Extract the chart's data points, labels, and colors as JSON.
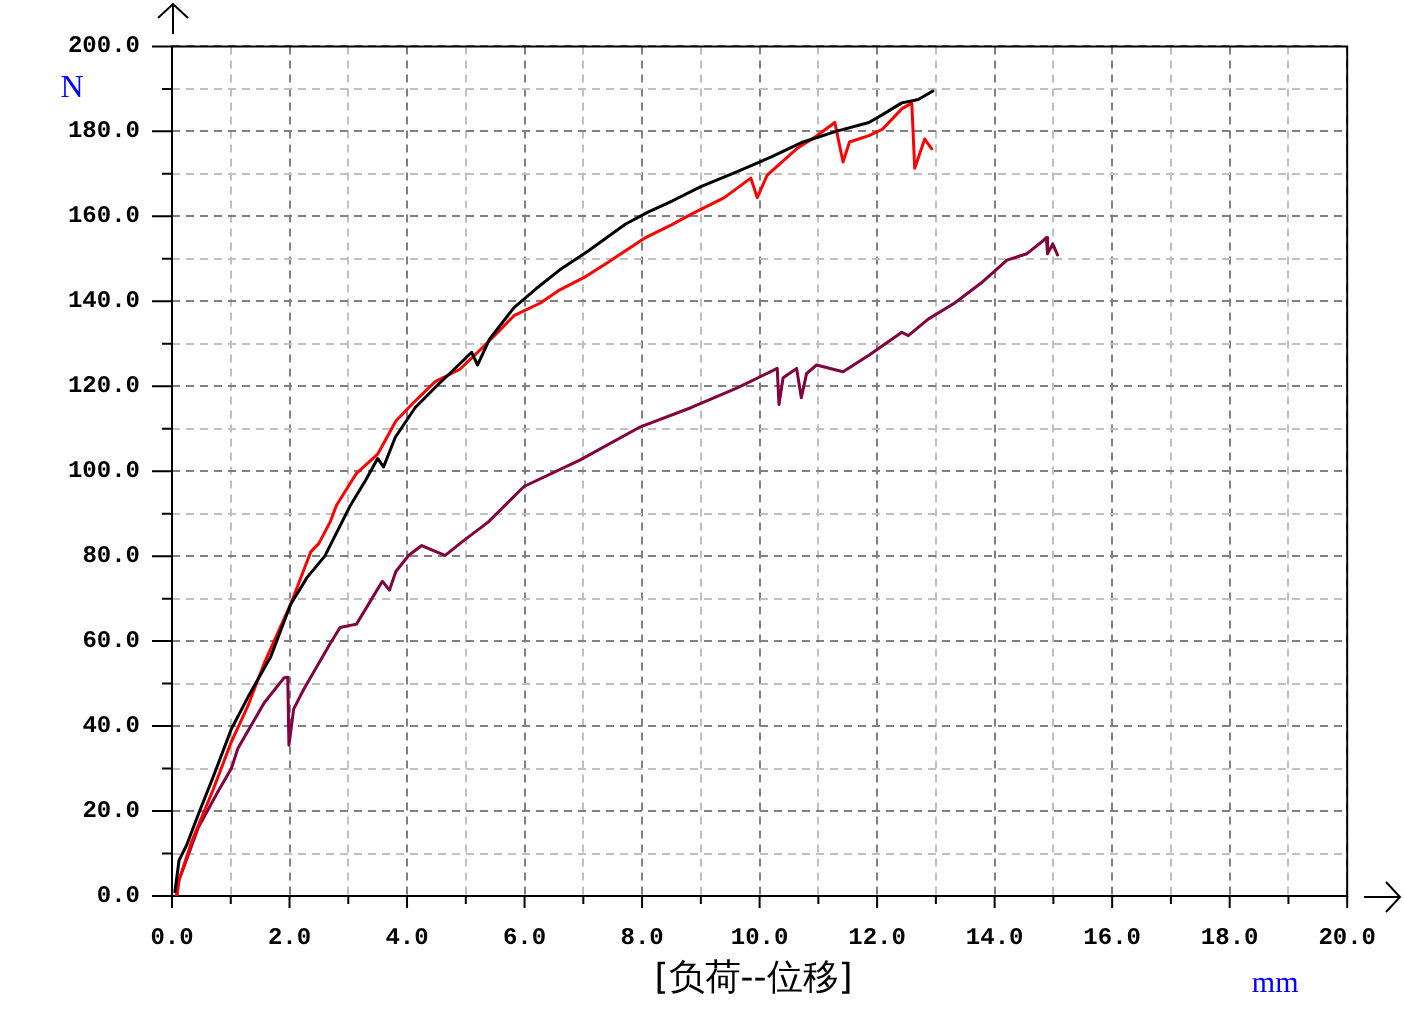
{
  "chart_data": {
    "type": "line",
    "title": "[负荷--位移]",
    "xlabel": "mm",
    "ylabel": "N",
    "xlim": [
      0,
      20
    ],
    "ylim": [
      0,
      200
    ],
    "xticks": [
      {
        "value": 0,
        "label": "0.0"
      },
      {
        "value": 1,
        "label": null
      },
      {
        "value": 2,
        "label": "2.0"
      },
      {
        "value": 3,
        "label": null
      },
      {
        "value": 4,
        "label": "4.0"
      },
      {
        "value": 5,
        "label": null
      },
      {
        "value": 6,
        "label": "6.0"
      },
      {
        "value": 7,
        "label": null
      },
      {
        "value": 8,
        "label": "8.0"
      },
      {
        "value": 9,
        "label": null
      },
      {
        "value": 10,
        "label": "10.0"
      },
      {
        "value": 11,
        "label": null
      },
      {
        "value": 12,
        "label": "12.0"
      },
      {
        "value": 13,
        "label": null
      },
      {
        "value": 14,
        "label": "14.0"
      },
      {
        "value": 15,
        "label": null
      },
      {
        "value": 16,
        "label": "16.0"
      },
      {
        "value": 17,
        "label": null
      },
      {
        "value": 18,
        "label": "18.0"
      },
      {
        "value": 19,
        "label": null
      },
      {
        "value": 20,
        "label": "20.0"
      }
    ],
    "yticks": [
      {
        "value": 0,
        "label": "0.0"
      },
      {
        "value": 10,
        "label": null
      },
      {
        "value": 20,
        "label": "20.0"
      },
      {
        "value": 30,
        "label": null
      },
      {
        "value": 40,
        "label": "40.0"
      },
      {
        "value": 50,
        "label": null
      },
      {
        "value": 60,
        "label": "60.0"
      },
      {
        "value": 70,
        "label": null
      },
      {
        "value": 80,
        "label": "80.0"
      },
      {
        "value": 90,
        "label": null
      },
      {
        "value": 100,
        "label": "100.0"
      },
      {
        "value": 110,
        "label": null
      },
      {
        "value": 120,
        "label": "120.0"
      },
      {
        "value": 130,
        "label": null
      },
      {
        "value": 140,
        "label": "140.0"
      },
      {
        "value": 150,
        "label": null
      },
      {
        "value": 160,
        "label": "160.0"
      },
      {
        "value": 170,
        "label": null
      },
      {
        "value": 180,
        "label": "180.0"
      },
      {
        "value": 190,
        "label": null
      },
      {
        "value": 200,
        "label": "200.0"
      }
    ],
    "grid": true,
    "legend": false,
    "marker": "none",
    "line_style": "solid",
    "series": [
      {
        "color": "#000000",
        "x": [
          0.05,
          0.12,
          0.25,
          0.45,
          0.7,
          1.01,
          1.3,
          1.68,
          2.02,
          2.3,
          2.6,
          3.03,
          3.3,
          3.5,
          3.6,
          3.8,
          4.14,
          4.5,
          4.93,
          5.1,
          5.2,
          5.4,
          5.82,
          6.2,
          6.6,
          7.1,
          7.72,
          8.1,
          8.51,
          9.0,
          9.62,
          10.2,
          10.74,
          11.3,
          11.86,
          12.1,
          12.42,
          12.7,
          12.95
        ],
        "values": [
          1,
          8.4,
          12,
          19.3,
          28,
          39.3,
          47,
          56.3,
          68.7,
          75,
          80,
          91.8,
          98,
          103,
          101,
          108,
          115,
          120,
          125.7,
          128,
          125,
          131,
          138.5,
          143,
          147.4,
          152,
          158.2,
          161,
          163.6,
          167,
          170.5,
          174,
          177.5,
          180,
          182.1,
          184,
          186.7,
          187.5,
          189.5
        ]
      },
      {
        "color": "#ff0000",
        "x": [
          0.08,
          0.12,
          0.34,
          0.7,
          1.01,
          1.3,
          1.57,
          2.02,
          2.36,
          2.5,
          2.69,
          2.8,
          3.14,
          3.5,
          3.81,
          4.1,
          4.48,
          4.9,
          5.15,
          5.38,
          5.82,
          6.27,
          6.6,
          7.0,
          7.39,
          8.06,
          8.5,
          8.84,
          9.4,
          9.85,
          9.96,
          10.13,
          10.63,
          10.97,
          11.28,
          11.42,
          11.53,
          11.86,
          12.09,
          12.42,
          12.59,
          12.64,
          12.81,
          12.93
        ],
        "values": [
          0,
          3.8,
          13,
          25,
          36.3,
          45,
          54.8,
          68.7,
          81,
          83,
          88,
          92,
          99.5,
          104,
          111.8,
          116,
          121.1,
          124,
          127.3,
          130.4,
          136.6,
          139.6,
          142.7,
          145.5,
          148.9,
          155,
          158,
          160.5,
          164.4,
          169,
          164.4,
          169.7,
          175.9,
          178.9,
          182.1,
          172.8,
          177.5,
          179,
          180.5,
          185.3,
          186.7,
          171.3,
          178.2,
          175.9
        ]
      },
      {
        "color": "#800040",
        "x": [
          0.08,
          0.12,
          0.45,
          0.8,
          1.01,
          1.12,
          1.57,
          1.91,
          1.97,
          1.99,
          2.07,
          2.24,
          2.69,
          2.86,
          3.14,
          3.58,
          3.7,
          3.81,
          4.03,
          4.25,
          4.5,
          4.65,
          4.93,
          5.38,
          5.99,
          6.94,
          7.95,
          8.84,
          9.62,
          10.3,
          10.33,
          10.4,
          10.63,
          10.71,
          10.8,
          10.97,
          11.42,
          11.86,
          12.42,
          12.53,
          12.87,
          13.32,
          13.77,
          14.21,
          14.55,
          14.83,
          14.88,
          14.9,
          14.99,
          15.07
        ],
        "values": [
          0,
          3.8,
          16.2,
          25,
          30,
          34.7,
          45.5,
          51.4,
          51.5,
          35.5,
          44,
          48.6,
          59.4,
          63.2,
          64,
          74.1,
          72,
          76.4,
          80.2,
          82.5,
          81,
          80.2,
          83.3,
          88,
          96.4,
          102.6,
          110.3,
          115,
          119.6,
          124.2,
          115.7,
          122,
          124.2,
          117.3,
          123,
          125,
          123.4,
          127.3,
          132.7,
          131.9,
          135.8,
          139.6,
          144.3,
          149.7,
          151.2,
          154.3,
          155,
          151.2,
          153.5,
          150.9
        ]
      }
    ]
  }
}
